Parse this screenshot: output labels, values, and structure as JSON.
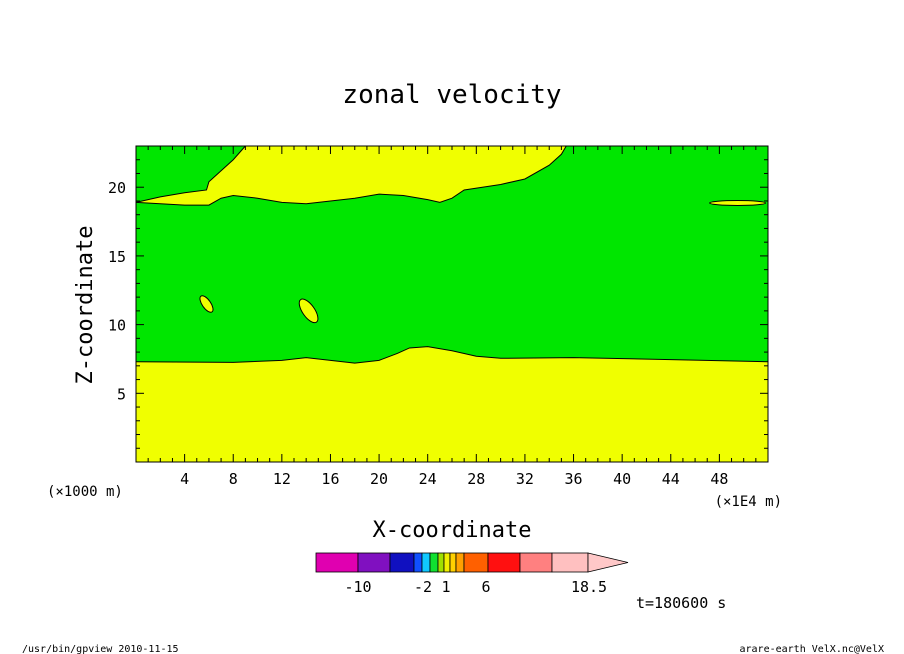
{
  "chart_data": {
    "type": "heatmap",
    "title": "zonal velocity",
    "xlabel": "X-coordinate",
    "ylabel": "Z-coordinate",
    "x_unit_left": "(×1000 m)",
    "x_unit_right": "(×1E4 m)",
    "xlim": [
      0,
      52
    ],
    "ylim": [
      0,
      23
    ],
    "x_ticks": [
      "4",
      "8",
      "12",
      "16",
      "20",
      "24",
      "28",
      "32",
      "36",
      "40",
      "44",
      "48"
    ],
    "x_tick_values": [
      4,
      8,
      12,
      16,
      20,
      24,
      28,
      32,
      36,
      40,
      44,
      48
    ],
    "y_ticks": [
      "5",
      "10",
      "15",
      "20"
    ],
    "y_tick_values": [
      5,
      10,
      15,
      20
    ],
    "time_label": "t=180600 s",
    "footer_left": "/usr/bin/gpview   2010-11-15",
    "footer_right": "arare-earth_VelX.nc@VelX",
    "colorbar": {
      "colors": [
        "#e000b0",
        "#8010c0",
        "#1010c0",
        "#1050ff",
        "#10c8ff",
        "#10e030",
        "#a0e000",
        "#f0f000",
        "#ffd000",
        "#ffa000",
        "#ff6000",
        "#ff1010",
        "#ff8080",
        "#ffc0c0"
      ],
      "labels": [
        "-10",
        "-2",
        "1",
        "6",
        "18.5"
      ],
      "arrow_color": "#ffc8c8"
    },
    "field_colors": {
      "low_band": "#f0ff00",
      "mid_band": "#00e600",
      "outline": "#000000"
    },
    "regions": {
      "lower_band_top": [
        [
          0,
          7.3
        ],
        [
          8,
          7.25
        ],
        [
          12,
          7.4
        ],
        [
          14,
          7.6
        ],
        [
          16,
          7.4
        ],
        [
          18,
          7.2
        ],
        [
          20,
          7.4
        ],
        [
          21.5,
          7.9
        ],
        [
          22.5,
          8.3
        ],
        [
          24,
          8.4
        ],
        [
          26,
          8.1
        ],
        [
          28,
          7.7
        ],
        [
          30,
          7.55
        ],
        [
          36,
          7.6
        ],
        [
          44,
          7.45
        ],
        [
          52,
          7.3
        ]
      ],
      "green_top": [
        [
          0,
          18.9
        ],
        [
          4,
          18.7
        ],
        [
          6,
          18.7
        ],
        [
          7,
          19.2
        ],
        [
          8,
          19.4
        ],
        [
          10,
          19.2
        ],
        [
          12,
          18.9
        ],
        [
          14,
          18.8
        ],
        [
          16,
          19.0
        ],
        [
          18,
          19.2
        ],
        [
          20,
          19.5
        ],
        [
          22,
          19.4
        ],
        [
          24,
          19.1
        ],
        [
          25,
          18.9
        ],
        [
          26,
          19.2
        ],
        [
          27,
          19.8
        ],
        [
          30,
          20.2
        ],
        [
          32,
          20.6
        ],
        [
          34,
          21.6
        ],
        [
          35,
          22.4
        ],
        [
          35.4,
          23
        ]
      ],
      "green_upper_left": [
        [
          0,
          18.9
        ],
        [
          2,
          19.3
        ],
        [
          4,
          19.6
        ],
        [
          5.8,
          19.8
        ],
        [
          6,
          20.4
        ],
        [
          7,
          21.2
        ],
        [
          8,
          22
        ],
        [
          9,
          23
        ]
      ],
      "small_patches": [
        {
          "cx": 5.8,
          "cy": 11.5,
          "rx": 0.35,
          "ry": 0.7,
          "angle_deg": -35
        },
        {
          "cx": 14.2,
          "cy": 11.0,
          "rx": 0.5,
          "ry": 1.0,
          "angle_deg": -35
        },
        {
          "cx": 49.5,
          "cy": 18.85,
          "rx": 2.3,
          "ry": 0.18,
          "angle_deg": 0
        }
      ]
    }
  }
}
